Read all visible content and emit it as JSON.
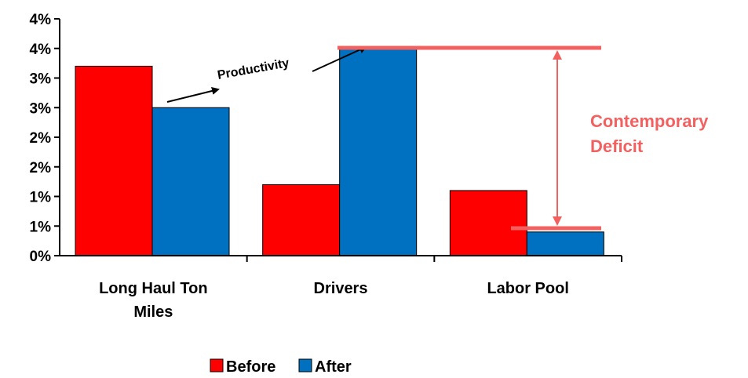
{
  "chart_data": {
    "type": "bar",
    "categories": [
      "Long Haul Ton Miles",
      "Drivers",
      "Labor Pool"
    ],
    "category_lines": [
      [
        "Long Haul Ton",
        "Miles"
      ],
      [
        "Drivers"
      ],
      [
        "Labor Pool"
      ]
    ],
    "series": [
      {
        "name": "Before",
        "values": [
          3.2,
          1.2,
          1.1
        ],
        "color": "#ff0000"
      },
      {
        "name": "After",
        "values": [
          2.5,
          3.5,
          0.4
        ],
        "color": "#0070c0"
      }
    ],
    "ylim": [
      0,
      4
    ],
    "y_tick_values": [
      0,
      0.5,
      1,
      1.5,
      2,
      2.5,
      3,
      3.5,
      4
    ],
    "y_tick_labels": [
      "0%",
      "1%",
      "1%",
      "2%",
      "2%",
      "3%",
      "3%",
      "4%",
      "4%"
    ],
    "legend_placement": "bottom",
    "grid": false,
    "annotations": {
      "productivity": "Productivity",
      "deficit_line1": "Contemporary",
      "deficit_line2": "Deficit",
      "deficit_color": "#f26060"
    }
  }
}
